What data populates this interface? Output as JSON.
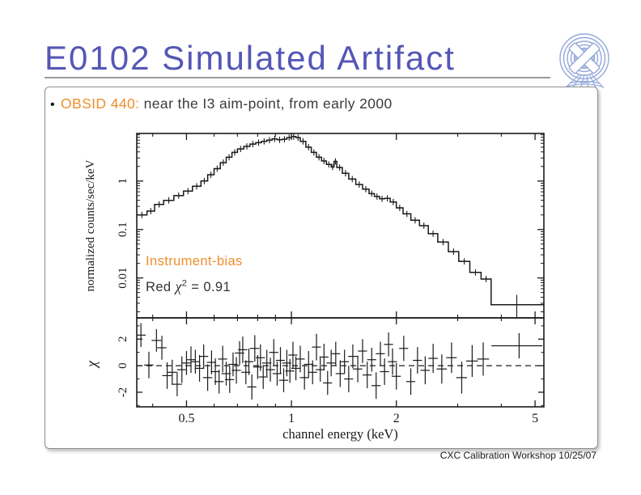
{
  "slide": {
    "title": "E0102 Simulated Artifact",
    "bullet": {
      "marker": "•",
      "highlight": "OBSID 440:",
      "text": " near the I3 aim-point, from early 2000"
    },
    "footer": "CXC Calibration Workshop 10/25/07"
  },
  "icons": {
    "logo": "cxc-chandra-logo"
  },
  "colors": {
    "title_blue": "#5457b6",
    "accent_orange": "#ef8e2a",
    "body_text": "#3b3b3b",
    "plot_ink": "#1a1a1a",
    "logo_blue": "#94a8da",
    "rule_gray": "#9c9c9c"
  },
  "annotations": {
    "instrument_bias": "Instrument-bias",
    "chi_label": {
      "pre": "Red ",
      "sym": "χ",
      "sup": "2",
      "post": " = 0.91"
    }
  },
  "chart_data": [
    {
      "type": "line",
      "panel": "spectrum",
      "xscale": "log",
      "yscale": "log",
      "xlim": [
        0.36,
        5.3
      ],
      "ylim": [
        0.0015,
        9.6
      ],
      "xticks": [
        0.5,
        1,
        2,
        5
      ],
      "yticks": [
        0.01,
        0.1,
        1
      ],
      "ylabel": "normalized counts/sec/keV",
      "grid": false,
      "series": [
        {
          "name": "folded model with data (step bins: [keV_left_edge, counts/sec/keV])",
          "step": true,
          "bins": [
            [
              0.36,
              0.2
            ],
            [
              0.385,
              0.24
            ],
            [
              0.405,
              0.33
            ],
            [
              0.43,
              0.4
            ],
            [
              0.46,
              0.5
            ],
            [
              0.49,
              0.62
            ],
            [
              0.52,
              0.78
            ],
            [
              0.55,
              1.0
            ],
            [
              0.575,
              1.35
            ],
            [
              0.6,
              1.8
            ],
            [
              0.625,
              2.4
            ],
            [
              0.65,
              3.1
            ],
            [
              0.675,
              3.9
            ],
            [
              0.7,
              4.6
            ],
            [
              0.73,
              5.2
            ],
            [
              0.76,
              5.8
            ],
            [
              0.79,
              6.2
            ],
            [
              0.82,
              6.6
            ],
            [
              0.85,
              7.0
            ],
            [
              0.88,
              7.4
            ],
            [
              0.91,
              7.1
            ],
            [
              0.94,
              7.3
            ],
            [
              0.97,
              7.9
            ],
            [
              1.0,
              8.3
            ],
            [
              1.03,
              7.9
            ],
            [
              1.06,
              6.6
            ],
            [
              1.1,
              5.0
            ],
            [
              1.14,
              3.9
            ],
            [
              1.18,
              3.1
            ],
            [
              1.22,
              2.6
            ],
            [
              1.26,
              2.2
            ],
            [
              1.3,
              1.95
            ],
            [
              1.325,
              2.55
            ],
            [
              1.35,
              1.9
            ],
            [
              1.4,
              1.45
            ],
            [
              1.46,
              1.1
            ],
            [
              1.53,
              0.85
            ],
            [
              1.6,
              0.68
            ],
            [
              1.67,
              0.55
            ],
            [
              1.73,
              0.48
            ],
            [
              1.79,
              0.43
            ],
            [
              1.85,
              0.44
            ],
            [
              1.92,
              0.37
            ],
            [
              2.0,
              0.28
            ],
            [
              2.09,
              0.21
            ],
            [
              2.2,
              0.155
            ],
            [
              2.33,
              0.12
            ],
            [
              2.47,
              0.082
            ],
            [
              2.63,
              0.055
            ],
            [
              2.82,
              0.035
            ],
            [
              3.02,
              0.022
            ],
            [
              3.25,
              0.013
            ],
            [
              3.5,
              0.0095
            ],
            [
              3.74,
              0.0028
            ],
            [
              5.25,
              0.0028
            ]
          ]
        }
      ]
    },
    {
      "type": "scatter",
      "panel": "residuals",
      "xscale": "log",
      "yscale": "linear",
      "xlim": [
        0.36,
        5.3
      ],
      "ylim": [
        -3.1,
        3.6
      ],
      "xticks": [
        0.5,
        1,
        2,
        5
      ],
      "yticks": [
        -2,
        0,
        2
      ],
      "xlabel": "channel energy (keV)",
      "ylabel": "χ",
      "zero_line": "dashed",
      "points_format": "[keV, chi, xerr_keV, yerr]",
      "points": [
        [
          0.37,
          2.3,
          0.012,
          0.9
        ],
        [
          0.39,
          0.05,
          0.012,
          1.0
        ],
        [
          0.41,
          1.9,
          0.013,
          0.85
        ],
        [
          0.425,
          1.35,
          0.013,
          0.9
        ],
        [
          0.44,
          -0.75,
          0.014,
          1.0
        ],
        [
          0.455,
          -0.5,
          0.014,
          0.95
        ],
        [
          0.47,
          -1.4,
          0.015,
          0.9
        ],
        [
          0.485,
          -0.3,
          0.015,
          1.0
        ],
        [
          0.5,
          0.2,
          0.015,
          0.9
        ],
        [
          0.515,
          0.45,
          0.016,
          1.0
        ],
        [
          0.53,
          0.3,
          0.016,
          0.9
        ],
        [
          0.545,
          -0.2,
          0.017,
          1.0
        ],
        [
          0.56,
          0.7,
          0.017,
          0.9
        ],
        [
          0.575,
          -0.9,
          0.018,
          1.0
        ],
        [
          0.59,
          0.25,
          0.018,
          0.9
        ],
        [
          0.605,
          -0.45,
          0.018,
          1.0
        ],
        [
          0.62,
          -1.2,
          0.019,
          0.9
        ],
        [
          0.635,
          0.5,
          0.019,
          1.0
        ],
        [
          0.65,
          -0.6,
          0.02,
          0.9
        ],
        [
          0.665,
          -1.05,
          0.02,
          1.0
        ],
        [
          0.68,
          0.1,
          0.021,
          0.9
        ],
        [
          0.695,
          -0.35,
          0.021,
          1.0
        ],
        [
          0.71,
          0.95,
          0.022,
          0.9
        ],
        [
          0.725,
          1.2,
          0.022,
          1.0
        ],
        [
          0.74,
          -0.5,
          0.022,
          0.9
        ],
        [
          0.755,
          0.3,
          0.023,
          1.0
        ],
        [
          0.77,
          -1.6,
          0.023,
          0.95
        ],
        [
          0.785,
          1.3,
          0.024,
          1.0
        ],
        [
          0.8,
          -0.1,
          0.024,
          0.9
        ],
        [
          0.815,
          0.6,
          0.025,
          1.0
        ],
        [
          0.83,
          -0.85,
          0.025,
          0.9
        ],
        [
          0.85,
          0.2,
          0.026,
          1.0
        ],
        [
          0.87,
          -0.3,
          0.026,
          0.9
        ],
        [
          0.89,
          1.0,
          0.027,
          1.0
        ],
        [
          0.91,
          -0.6,
          0.027,
          0.9
        ],
        [
          0.93,
          0.4,
          0.028,
          1.0
        ],
        [
          0.95,
          -1.1,
          0.029,
          0.9
        ],
        [
          0.97,
          0.2,
          0.029,
          1.0
        ],
        [
          0.99,
          -0.4,
          0.03,
          0.9
        ],
        [
          1.01,
          0.8,
          0.03,
          1.0
        ],
        [
          1.03,
          -0.2,
          0.031,
          0.9
        ],
        [
          1.06,
          0.5,
          0.032,
          1.0
        ],
        [
          1.09,
          -0.9,
          0.033,
          0.9
        ],
        [
          1.12,
          0.1,
          0.034,
          1.0
        ],
        [
          1.15,
          -0.5,
          0.035,
          0.9
        ],
        [
          1.18,
          1.4,
          0.035,
          1.0
        ],
        [
          1.21,
          -0.3,
          0.036,
          0.9
        ],
        [
          1.24,
          0.65,
          0.037,
          1.0
        ],
        [
          1.27,
          -1.3,
          0.038,
          0.9
        ],
        [
          1.3,
          0.2,
          0.039,
          1.0
        ],
        [
          1.34,
          0.9,
          0.04,
          0.9
        ],
        [
          1.38,
          -0.6,
          0.041,
          1.0
        ],
        [
          1.42,
          0.3,
          0.043,
          0.9
        ],
        [
          1.46,
          -1.0,
          0.044,
          1.0
        ],
        [
          1.5,
          0.7,
          0.045,
          0.9
        ],
        [
          1.55,
          -0.25,
          0.047,
          1.0
        ],
        [
          1.6,
          1.1,
          0.048,
          0.9
        ],
        [
          1.65,
          -0.7,
          0.05,
          1.0
        ],
        [
          1.7,
          0.45,
          0.051,
          0.9
        ],
        [
          1.75,
          -1.5,
          0.053,
          1.0
        ],
        [
          1.8,
          0.9,
          0.054,
          0.9
        ],
        [
          1.85,
          -0.45,
          0.056,
          1.0
        ],
        [
          1.9,
          1.6,
          0.057,
          0.9
        ],
        [
          1.95,
          0.3,
          0.059,
          1.0
        ],
        [
          2.0,
          -0.8,
          0.06,
          1.0
        ],
        [
          2.1,
          1.3,
          0.063,
          0.95
        ],
        [
          2.2,
          -1.2,
          0.066,
          1.0
        ],
        [
          2.3,
          0.4,
          0.07,
          1.0
        ],
        [
          2.42,
          -0.35,
          0.075,
          1.05
        ],
        [
          2.55,
          0.55,
          0.08,
          1.1
        ],
        [
          2.7,
          -0.25,
          0.09,
          1.1
        ],
        [
          2.88,
          0.6,
          0.1,
          1.15
        ],
        [
          3.08,
          -0.9,
          0.11,
          1.2
        ],
        [
          3.3,
          0.35,
          0.13,
          1.2
        ],
        [
          3.55,
          0.5,
          0.14,
          1.25
        ],
        [
          4.5,
          1.5,
          0.75,
          0.95
        ]
      ]
    }
  ]
}
